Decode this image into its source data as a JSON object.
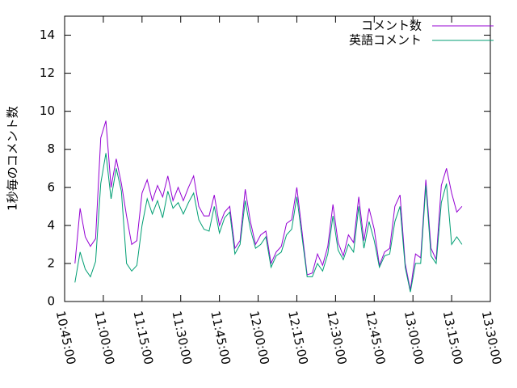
{
  "chart_data": {
    "type": "line",
    "y_label": "1秒毎のコメント数",
    "legend": "top right",
    "x": [
      "10:49:00",
      "10:51:00",
      "10:53:00",
      "10:55:00",
      "10:57:00",
      "10:59:00",
      "11:01:00",
      "11:03:00",
      "11:05:00",
      "11:07:00",
      "11:09:00",
      "11:11:00",
      "11:13:00",
      "11:15:00",
      "11:17:00",
      "11:19:00",
      "11:21:00",
      "11:23:00",
      "11:25:00",
      "11:27:00",
      "11:29:00",
      "11:31:00",
      "11:33:00",
      "11:35:00",
      "11:37:00",
      "11:39:00",
      "11:41:00",
      "11:43:00",
      "11:45:00",
      "11:47:00",
      "11:49:00",
      "11:51:00",
      "11:53:00",
      "11:55:00",
      "11:57:00",
      "11:59:00",
      "12:01:00",
      "12:03:00",
      "12:05:00",
      "12:07:00",
      "12:09:00",
      "12:11:00",
      "12:13:00",
      "12:15:00",
      "12:17:00",
      "12:19:00",
      "12:21:00",
      "12:23:00",
      "12:25:00",
      "12:27:00",
      "12:29:00",
      "12:31:00",
      "12:33:00",
      "12:35:00",
      "12:37:00",
      "12:39:00",
      "12:41:00",
      "12:43:00",
      "12:45:00",
      "12:47:00",
      "12:49:00",
      "12:51:00",
      "12:53:00",
      "12:55:00",
      "12:57:00",
      "12:59:00",
      "13:01:00",
      "13:03:00",
      "13:05:00",
      "13:07:00",
      "13:09:00",
      "13:11:00",
      "13:13:00",
      "13:15:00",
      "13:17:00",
      "13:19:00"
    ],
    "series": [
      {
        "name": "コメント数",
        "color": "#9400d3",
        "values": [
          2.0,
          4.9,
          3.4,
          2.9,
          3.3,
          8.6,
          9.5,
          6.0,
          7.5,
          6.2,
          4.5,
          3.0,
          3.2,
          5.7,
          6.4,
          5.3,
          6.1,
          5.5,
          6.6,
          5.3,
          6.0,
          5.3,
          6.0,
          6.6,
          5.0,
          4.5,
          4.5,
          5.6,
          4.0,
          4.7,
          5.0,
          2.8,
          3.2,
          5.9,
          4.2,
          3.0,
          3.5,
          3.7,
          2.0,
          2.6,
          2.9,
          4.1,
          4.3,
          6.0,
          3.7,
          1.4,
          1.5,
          2.5,
          1.9,
          2.9,
          5.1,
          3.1,
          2.4,
          3.5,
          3.1,
          5.5,
          3.2,
          4.9,
          3.8,
          1.9,
          2.6,
          2.8,
          5.0,
          5.6,
          2.0,
          0.6,
          2.5,
          2.3,
          6.4,
          2.8,
          2.2,
          6.1,
          7.0,
          5.7,
          4.7,
          5.0
        ]
      },
      {
        "name": "英語コメント",
        "color": "#009e73",
        "values": [
          1.0,
          2.6,
          1.7,
          1.3,
          2.1,
          6.2,
          7.8,
          5.4,
          7.0,
          5.8,
          2.0,
          1.6,
          1.9,
          4.0,
          5.4,
          4.6,
          5.3,
          4.4,
          5.8,
          4.9,
          5.2,
          4.6,
          5.2,
          5.7,
          4.3,
          3.8,
          3.7,
          5.0,
          3.6,
          4.4,
          4.7,
          2.5,
          3.0,
          5.3,
          3.8,
          2.8,
          3.0,
          3.4,
          1.8,
          2.4,
          2.6,
          3.5,
          3.8,
          5.5,
          3.4,
          1.3,
          1.3,
          2.0,
          1.6,
          2.5,
          4.5,
          2.7,
          2.2,
          3.0,
          2.6,
          5.0,
          2.8,
          4.2,
          3.2,
          1.8,
          2.4,
          2.5,
          4.2,
          5.0,
          1.8,
          0.5,
          2.0,
          2.0,
          6.1,
          2.4,
          2.0,
          5.2,
          6.2,
          3.0,
          3.4,
          3.0
        ]
      }
    ],
    "xlim": [
      "10:45:00",
      "13:30:00"
    ],
    "xticks": [
      "10:45:00",
      "11:00:00",
      "11:15:00",
      "11:30:00",
      "11:45:00",
      "12:00:00",
      "12:15:00",
      "12:30:00",
      "12:45:00",
      "13:00:00",
      "13:15:00",
      "13:30:00"
    ],
    "ylim": [
      0,
      15
    ],
    "yticks": [
      0,
      2,
      4,
      6,
      8,
      10,
      12,
      14
    ]
  }
}
